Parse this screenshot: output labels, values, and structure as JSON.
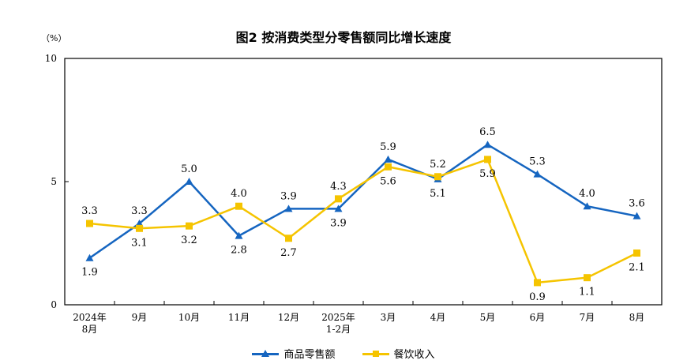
{
  "title": "图2  按消费类型分零售额同比增长速度",
  "unit_label": "（%）",
  "chart_data": {
    "type": "line",
    "title": "图2  按消费类型分零售额同比增长速度",
    "ylabel": "（%）",
    "ylim": [
      0,
      10
    ],
    "yticks": [
      "0",
      "5",
      "10"
    ],
    "categories": [
      [
        "2024年",
        "8月"
      ],
      [
        "9月"
      ],
      [
        "10月"
      ],
      [
        "11月"
      ],
      [
        "12月"
      ],
      [
        "2025年",
        "1-2月"
      ],
      [
        "3月"
      ],
      [
        "4月"
      ],
      [
        "5月"
      ],
      [
        "6月"
      ],
      [
        "7月"
      ],
      [
        "8月"
      ]
    ],
    "legend_position": "bottom",
    "grid": false,
    "series": [
      {
        "name": "商品零售额",
        "color": "#1565C0",
        "marker": "triangle",
        "values": [
          1.9,
          3.3,
          5.0,
          2.8,
          3.9,
          3.9,
          5.9,
          5.1,
          6.5,
          5.3,
          4.0,
          3.6
        ],
        "labels": [
          "1.9",
          "3.3",
          "5.0",
          "2.8",
          "3.9",
          "3.9",
          "5.9",
          "5.1",
          "6.5",
          "5.3",
          "4.0",
          "3.6"
        ]
      },
      {
        "name": "餐饮收入",
        "color": "#F5C400",
        "marker": "square",
        "values": [
          3.3,
          3.1,
          3.2,
          4.0,
          2.7,
          4.3,
          5.6,
          5.2,
          5.9,
          0.9,
          1.1,
          2.1
        ],
        "labels": [
          "3.3",
          "3.1",
          "3.2",
          "4.0",
          "2.7",
          "4.3",
          "5.6",
          "5.2",
          "5.9",
          "0.9",
          "1.1",
          "2.1"
        ]
      }
    ]
  }
}
